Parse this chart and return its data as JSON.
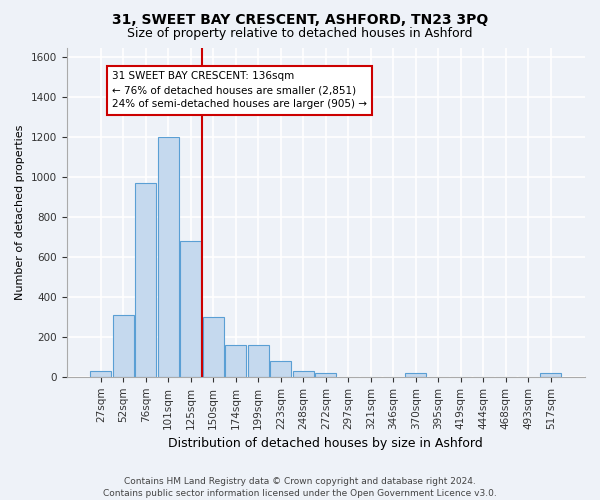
{
  "title": "31, SWEET BAY CRESCENT, ASHFORD, TN23 3PQ",
  "subtitle": "Size of property relative to detached houses in Ashford",
  "xlabel": "Distribution of detached houses by size in Ashford",
  "ylabel": "Number of detached properties",
  "footer1": "Contains HM Land Registry data © Crown copyright and database right 2024.",
  "footer2": "Contains public sector information licensed under the Open Government Licence v3.0.",
  "categories": [
    "27sqm",
    "52sqm",
    "76sqm",
    "101sqm",
    "125sqm",
    "150sqm",
    "174sqm",
    "199sqm",
    "223sqm",
    "248sqm",
    "272sqm",
    "297sqm",
    "321sqm",
    "346sqm",
    "370sqm",
    "395sqm",
    "419sqm",
    "444sqm",
    "468sqm",
    "493sqm",
    "517sqm"
  ],
  "values": [
    30,
    310,
    970,
    1200,
    680,
    300,
    160,
    160,
    80,
    30,
    20,
    0,
    0,
    0,
    20,
    0,
    0,
    0,
    0,
    0,
    20
  ],
  "bar_color": "#c5d9ee",
  "bar_edge_color": "#5a9fd4",
  "ylim": [
    0,
    1650
  ],
  "yticks": [
    0,
    200,
    400,
    600,
    800,
    1000,
    1200,
    1400,
    1600
  ],
  "vline_x": 4.5,
  "vline_color": "#cc0000",
  "annotation_text": "31 SWEET BAY CRESCENT: 136sqm\n← 76% of detached houses are smaller (2,851)\n24% of semi-detached houses are larger (905) →",
  "annotation_box_color": "#ffffff",
  "annotation_box_edge": "#cc0000",
  "background_color": "#eef2f8",
  "grid_color": "#ffffff",
  "title_fontsize": 10,
  "subtitle_fontsize": 9,
  "xlabel_fontsize": 9,
  "ylabel_fontsize": 8,
  "tick_fontsize": 7.5,
  "footer_fontsize": 6.5,
  "annotation_fontsize": 7.5
}
